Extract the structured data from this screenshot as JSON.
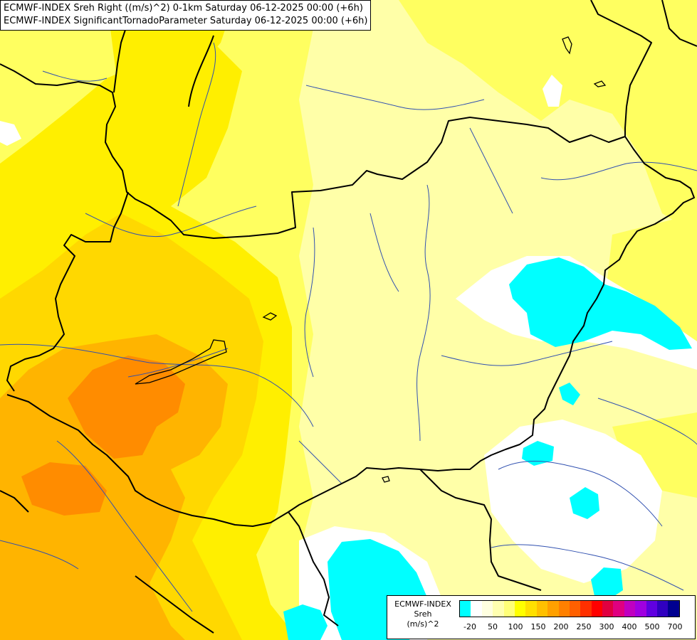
{
  "titles": {
    "line1": "ECMWF-INDEX Sreh Right ((m/s)^2) 0-1km Saturday 06-12-2025 00:00 (+6h)",
    "line2": "ECMWF-INDEX SignificantTornadoParameter Saturday 06-12-2025 00:00 (+6h)"
  },
  "legend": {
    "title_line1": "ECMWF-INDEX",
    "title_line2": "Sreh",
    "title_line3": "(m/s)^2",
    "colors": [
      "#00ffff",
      "#ffffff",
      "#ffffe0",
      "#ffffb0",
      "#ffff78",
      "#ffff00",
      "#ffe000",
      "#ffc000",
      "#ffa000",
      "#ff8000",
      "#ff6000",
      "#ff3000",
      "#ff0000",
      "#e00040",
      "#e00080",
      "#c000c0",
      "#a000e0",
      "#6000e0",
      "#3000c0",
      "#000090"
    ],
    "ticks": [
      "-20",
      "50",
      "100",
      "150",
      "200",
      "250",
      "300",
      "400",
      "500",
      "700"
    ]
  },
  "colors": {
    "cyan": "#00ffff",
    "white": "#ffffff",
    "pale_yellow": "#ffffa8",
    "yellow": "#ffff60",
    "gold": "#ffef00",
    "amber": "#ffd800",
    "orange_light": "#ffb400",
    "orange": "#ff8c00",
    "border": "#000000",
    "river": "#2040b0"
  }
}
